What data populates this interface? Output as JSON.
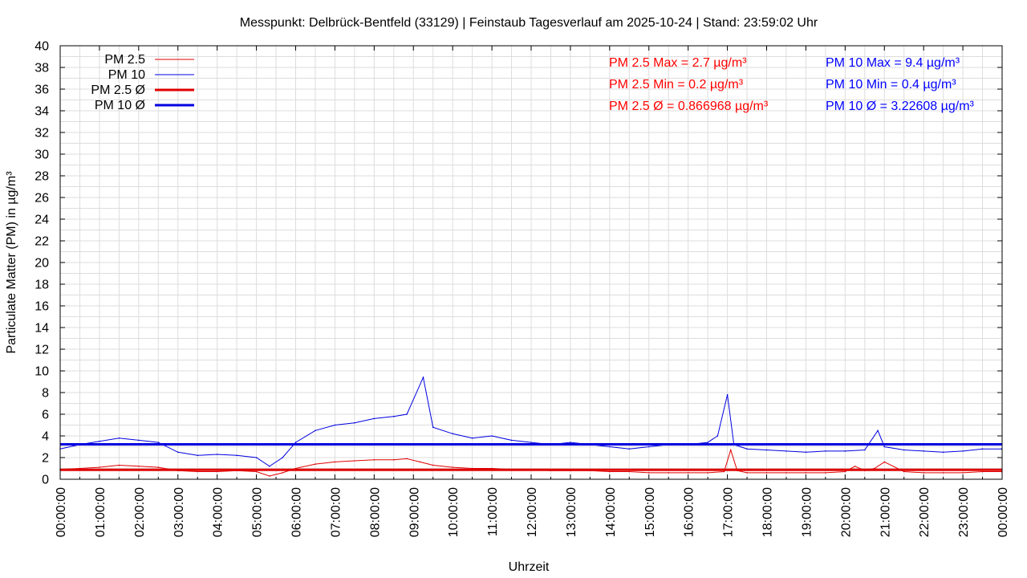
{
  "chart_data": {
    "type": "line",
    "title": "Messpunkt: Delbrück-Bentfeld (33129) | Feinstaub Tagesverlauf am 2025-10-24 | Stand: 23:59:02 Uhr",
    "xlabel": "Uhrzeit",
    "ylabel": "Particulate Matter (PM) in µg/m³",
    "ylim": [
      0,
      40
    ],
    "xlim_hours": [
      0,
      24
    ],
    "y_ticks": [
      "0",
      "2",
      "4",
      "6",
      "8",
      "10",
      "12",
      "14",
      "16",
      "18",
      "20",
      "22",
      "24",
      "26",
      "28",
      "30",
      "32",
      "34",
      "36",
      "38",
      "40"
    ],
    "x_ticks": [
      "00:00:00",
      "01:00:00",
      "02:00:00",
      "03:00:00",
      "04:00:00",
      "05:00:00",
      "06:00:00",
      "07:00:00",
      "08:00:00",
      "09:00:00",
      "10:00:00",
      "11:00:00",
      "12:00:00",
      "13:00:00",
      "14:00:00",
      "15:00:00",
      "16:00:00",
      "17:00:00",
      "18:00:00",
      "19:00:00",
      "20:00:00",
      "21:00:00",
      "22:00:00",
      "23:00:00",
      "00:00:00"
    ],
    "grid": true,
    "legend_position": "top-left",
    "series": [
      {
        "name": "PM 2.5",
        "color": "#e00000",
        "line": "thin",
        "x": [
          "00:00",
          "00:30",
          "01:00",
          "01:30",
          "02:00",
          "02:30",
          "03:00",
          "03:30",
          "04:00",
          "04:30",
          "05:00",
          "05:20",
          "05:40",
          "06:00",
          "06:30",
          "07:00",
          "07:30",
          "08:00",
          "08:30",
          "08:50",
          "09:10",
          "09:30",
          "10:00",
          "10:30",
          "11:00",
          "11:30",
          "12:00",
          "12:30",
          "13:00",
          "13:30",
          "14:00",
          "14:30",
          "15:00",
          "15:30",
          "16:00",
          "16:30",
          "16:55",
          "17:05",
          "17:15",
          "17:30",
          "18:00",
          "18:30",
          "19:00",
          "19:30",
          "20:00",
          "20:15",
          "20:30",
          "20:45",
          "21:00",
          "21:30",
          "22:00",
          "22:30",
          "23:00",
          "23:30",
          "23:59"
        ],
        "values": [
          0.9,
          1.0,
          1.1,
          1.3,
          1.2,
          1.1,
          0.8,
          0.7,
          0.7,
          0.8,
          0.7,
          0.3,
          0.6,
          1.0,
          1.4,
          1.6,
          1.7,
          1.8,
          1.8,
          1.9,
          1.6,
          1.3,
          1.1,
          1.0,
          1.0,
          0.9,
          0.9,
          0.8,
          0.8,
          0.8,
          0.7,
          0.7,
          0.6,
          0.6,
          0.6,
          0.6,
          0.7,
          2.7,
          0.8,
          0.6,
          0.6,
          0.6,
          0.6,
          0.6,
          0.7,
          1.2,
          0.8,
          1.0,
          1.6,
          0.7,
          0.6,
          0.6,
          0.6,
          0.7,
          0.7
        ]
      },
      {
        "name": "PM 10",
        "color": "#0000e0",
        "line": "thin",
        "x": [
          "00:00",
          "00:30",
          "01:00",
          "01:30",
          "02:00",
          "02:30",
          "03:00",
          "03:30",
          "04:00",
          "04:30",
          "05:00",
          "05:20",
          "05:40",
          "06:00",
          "06:30",
          "07:00",
          "07:30",
          "08:00",
          "08:30",
          "08:50",
          "09:15",
          "09:30",
          "10:00",
          "10:30",
          "11:00",
          "11:30",
          "12:00",
          "12:30",
          "13:00",
          "13:30",
          "14:00",
          "14:30",
          "15:00",
          "15:30",
          "16:00",
          "16:30",
          "16:45",
          "17:00",
          "17:10",
          "17:20",
          "17:30",
          "18:00",
          "18:30",
          "19:00",
          "19:30",
          "20:00",
          "20:30",
          "20:50",
          "21:00",
          "21:30",
          "22:00",
          "22:30",
          "23:00",
          "23:30",
          "23:59"
        ],
        "values": [
          2.8,
          3.2,
          3.5,
          3.8,
          3.6,
          3.4,
          2.5,
          2.2,
          2.3,
          2.2,
          2.0,
          1.2,
          2.0,
          3.4,
          4.5,
          5.0,
          5.2,
          5.6,
          5.8,
          6.0,
          9.4,
          4.8,
          4.2,
          3.8,
          4.0,
          3.6,
          3.4,
          3.2,
          3.4,
          3.2,
          3.0,
          2.8,
          3.0,
          3.2,
          3.2,
          3.4,
          4.0,
          7.8,
          3.2,
          3.0,
          2.8,
          2.7,
          2.6,
          2.5,
          2.6,
          2.6,
          2.7,
          4.5,
          3.0,
          2.7,
          2.6,
          2.5,
          2.6,
          2.8,
          2.8
        ]
      },
      {
        "name": "PM 2.5 Ø",
        "color": "#e00000",
        "line": "thick",
        "value": 0.866968
      },
      {
        "name": "PM 10 Ø",
        "color": "#0000e0",
        "line": "thick",
        "value": 3.22608
      }
    ],
    "annotations": {
      "pm25_max": "PM 2.5 Max = 2.7 µg/m³",
      "pm25_min": "PM 2.5 Min = 0.2 µg/m³",
      "pm25_avg": "PM 2.5 Ø = 0.866968 µg/m³",
      "pm10_max": "PM 10 Max = 9.4 µg/m³",
      "pm10_min": "PM 10 Min = 0.4 µg/m³",
      "pm10_avg": "PM 10 Ø = 3.22608 µg/m³"
    }
  }
}
